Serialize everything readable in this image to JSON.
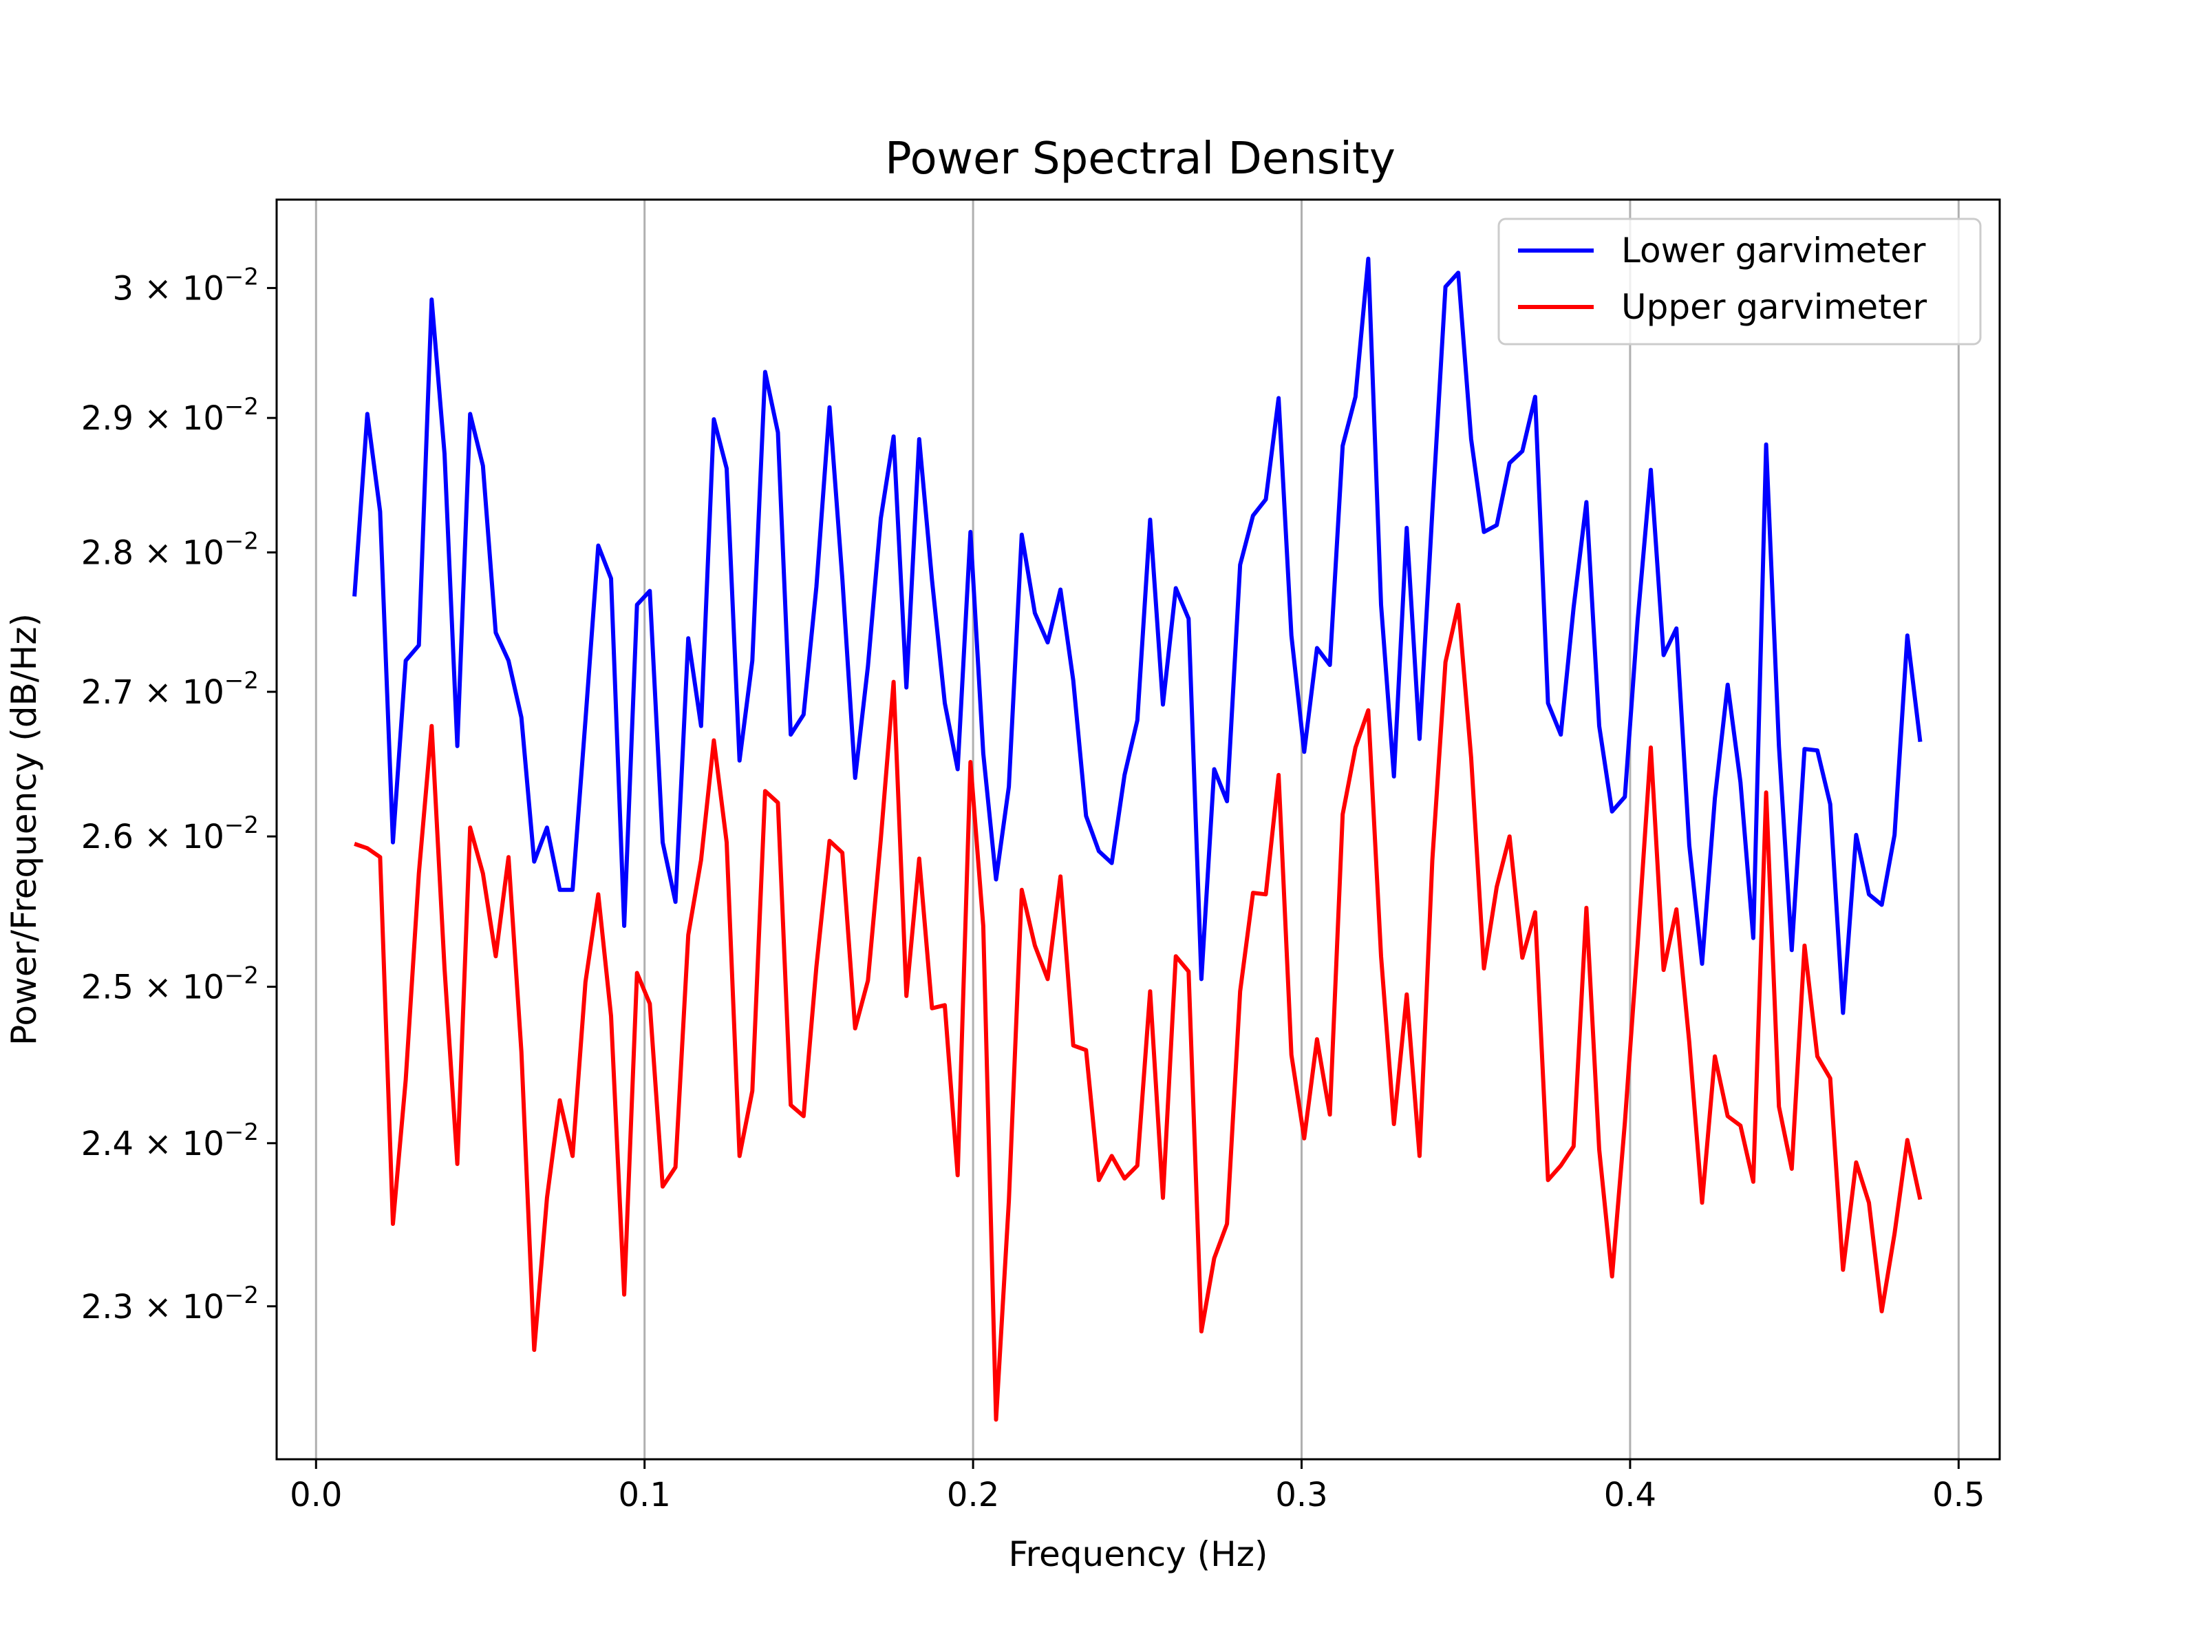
{
  "chart_data": {
    "type": "line",
    "title": "Power Spectral Density",
    "xlabel": "Frequency (Hz)",
    "ylabel": "Power/Frequency (dB/Hz)",
    "xlim": [
      -0.012,
      0.5125
    ],
    "ylim": [
      0.0221,
      0.0307
    ],
    "yscale": "log",
    "grid": "vertical",
    "legend_position": "top-right",
    "x_ticks": [
      {
        "value": 0.0,
        "label": "0.0"
      },
      {
        "value": 0.1,
        "label": "0.1"
      },
      {
        "value": 0.2,
        "label": "0.2"
      },
      {
        "value": 0.3,
        "label": "0.3"
      },
      {
        "value": 0.4,
        "label": "0.4"
      },
      {
        "value": 0.5,
        "label": "0.5"
      }
    ],
    "y_ticks": [
      {
        "value": 0.023,
        "mantissa": "2.3",
        "exponent": "−2"
      },
      {
        "value": 0.024,
        "mantissa": "2.4",
        "exponent": "−2"
      },
      {
        "value": 0.025,
        "mantissa": "2.5",
        "exponent": "−2"
      },
      {
        "value": 0.026,
        "mantissa": "2.6",
        "exponent": "−2"
      },
      {
        "value": 0.027,
        "mantissa": "2.7",
        "exponent": "−2"
      },
      {
        "value": 0.028,
        "mantissa": "2.8",
        "exponent": "−2"
      },
      {
        "value": 0.029,
        "mantissa": "2.9",
        "exponent": "−2"
      },
      {
        "value": 0.03,
        "mantissa": "3",
        "exponent": "−2"
      }
    ],
    "series": [
      {
        "name": "Lower garvimeter",
        "color": "#0000ff",
        "x": [
          0.0117,
          0.0156,
          0.0195,
          0.0234,
          0.0273,
          0.0313,
          0.0352,
          0.0391,
          0.043,
          0.0469,
          0.0508,
          0.0547,
          0.0586,
          0.0625,
          0.0664,
          0.0703,
          0.0742,
          0.0781,
          0.082,
          0.0859,
          0.0898,
          0.0938,
          0.0977,
          0.1016,
          0.1055,
          0.1094,
          0.1133,
          0.1172,
          0.1211,
          0.125,
          0.1289,
          0.1328,
          0.1367,
          0.1406,
          0.1445,
          0.1484,
          0.1523,
          0.1563,
          0.1602,
          0.1641,
          0.168,
          0.1719,
          0.1758,
          0.1797,
          0.1836,
          0.1875,
          0.1914,
          0.1953,
          0.1992,
          0.2031,
          0.207,
          0.2109,
          0.2148,
          0.2188,
          0.2227,
          0.2266,
          0.2305,
          0.2344,
          0.2383,
          0.2422,
          0.2461,
          0.25,
          0.2539,
          0.2578,
          0.2617,
          0.2656,
          0.2695,
          0.2734,
          0.2773,
          0.2813,
          0.2852,
          0.2891,
          0.293,
          0.2969,
          0.3008,
          0.3047,
          0.3086,
          0.3125,
          0.3164,
          0.3203,
          0.3242,
          0.3281,
          0.332,
          0.3359,
          0.3398,
          0.3438,
          0.3477,
          0.3516,
          0.3555,
          0.3594,
          0.3633,
          0.3672,
          0.3711,
          0.375,
          0.3789,
          0.3828,
          0.3867,
          0.3906,
          0.3945,
          0.3984,
          0.4023,
          0.4063,
          0.4102,
          0.4141,
          0.418,
          0.4219,
          0.4258,
          0.4297,
          0.4336,
          0.4375,
          0.4414,
          0.4453,
          0.4492,
          0.4531,
          0.457,
          0.4609,
          0.4648,
          0.4688,
          0.4727,
          0.4766,
          0.4805,
          0.4844,
          0.4883
        ],
        "y": [
          0.02768,
          0.02903,
          0.0283,
          0.02596,
          0.02722,
          0.02733,
          0.02991,
          0.02873,
          0.02662,
          0.02903,
          0.02864,
          0.02742,
          0.02722,
          0.02682,
          0.02583,
          0.02606,
          0.02564,
          0.02564,
          0.0268,
          0.02805,
          0.02781,
          0.0254,
          0.02762,
          0.02772,
          0.02596,
          0.02556,
          0.02738,
          0.02676,
          0.02899,
          0.02862,
          0.02652,
          0.02722,
          0.02935,
          0.02889,
          0.0267,
          0.02684,
          0.02775,
          0.02908,
          0.02781,
          0.0264,
          0.02718,
          0.02825,
          0.02886,
          0.02703,
          0.02884,
          0.0278,
          0.02692,
          0.02646,
          0.02815,
          0.02657,
          0.02571,
          0.02634,
          0.02813,
          0.02756,
          0.02735,
          0.02773,
          0.02708,
          0.02614,
          0.0259,
          0.02582,
          0.02642,
          0.0268,
          0.02824,
          0.02691,
          0.02774,
          0.02752,
          0.02505,
          0.02646,
          0.02624,
          0.02791,
          0.02827,
          0.02839,
          0.02915,
          0.0274,
          0.02658,
          0.02731,
          0.02719,
          0.02879,
          0.02916,
          0.03023,
          0.02762,
          0.02641,
          0.02818,
          0.02667,
          0.0283,
          0.03001,
          0.03012,
          0.02884,
          0.02815,
          0.0282,
          0.02866,
          0.02875,
          0.02916,
          0.02692,
          0.0267,
          0.0276,
          0.02837,
          0.02676,
          0.02617,
          0.02627,
          0.02751,
          0.02861,
          0.02726,
          0.02745,
          0.02594,
          0.02515,
          0.02626,
          0.02705,
          0.02637,
          0.02532,
          0.0288,
          0.02662,
          0.02524,
          0.0266,
          0.02659,
          0.02622,
          0.02483,
          0.02601,
          0.02561,
          0.02554,
          0.02601,
          0.0274,
          0.02665
        ]
      },
      {
        "name": "Upper garvimeter",
        "color": "#ff0000",
        "x": [
          0.0117,
          0.0156,
          0.0195,
          0.0234,
          0.0273,
          0.0313,
          0.0352,
          0.0391,
          0.043,
          0.0469,
          0.0508,
          0.0547,
          0.0586,
          0.0625,
          0.0664,
          0.0703,
          0.0742,
          0.0781,
          0.082,
          0.0859,
          0.0898,
          0.0938,
          0.0977,
          0.1016,
          0.1055,
          0.1094,
          0.1133,
          0.1172,
          0.1211,
          0.125,
          0.1289,
          0.1328,
          0.1367,
          0.1406,
          0.1445,
          0.1484,
          0.1523,
          0.1563,
          0.1602,
          0.1641,
          0.168,
          0.1719,
          0.1758,
          0.1797,
          0.1836,
          0.1875,
          0.1914,
          0.1953,
          0.1992,
          0.2031,
          0.207,
          0.2109,
          0.2148,
          0.2188,
          0.2227,
          0.2266,
          0.2305,
          0.2344,
          0.2383,
          0.2422,
          0.2461,
          0.25,
          0.2539,
          0.2578,
          0.2617,
          0.2656,
          0.2695,
          0.2734,
          0.2773,
          0.2813,
          0.2852,
          0.2891,
          0.293,
          0.2969,
          0.3008,
          0.3047,
          0.3086,
          0.3125,
          0.3164,
          0.3203,
          0.3242,
          0.3281,
          0.332,
          0.3359,
          0.3398,
          0.3438,
          0.3477,
          0.3516,
          0.3555,
          0.3594,
          0.3633,
          0.3672,
          0.3711,
          0.375,
          0.3789,
          0.3828,
          0.3867,
          0.3906,
          0.3945,
          0.3984,
          0.4023,
          0.4063,
          0.4102,
          0.4141,
          0.418,
          0.4219,
          0.4258,
          0.4297,
          0.4336,
          0.4375,
          0.4414,
          0.4453,
          0.4492,
          0.4531,
          0.457,
          0.4609,
          0.4648,
          0.4688,
          0.4727,
          0.4766,
          0.4805,
          0.4844,
          0.4883
        ],
        "y": [
          0.02595,
          0.02592,
          0.02586,
          0.0235,
          0.0244,
          0.02575,
          0.02676,
          0.02512,
          0.02387,
          0.02606,
          0.02575,
          0.0252,
          0.02586,
          0.02458,
          0.02274,
          0.02366,
          0.02427,
          0.02392,
          0.02503,
          0.02561,
          0.02481,
          0.02307,
          0.02509,
          0.02489,
          0.02373,
          0.02385,
          0.02534,
          0.02584,
          0.02666,
          0.02596,
          0.02392,
          0.02433,
          0.02631,
          0.02623,
          0.02424,
          0.02417,
          0.02513,
          0.02597,
          0.02589,
          0.02473,
          0.02504,
          0.02598,
          0.02707,
          0.02494,
          0.02585,
          0.02486,
          0.02488,
          0.0238,
          0.02651,
          0.0254,
          0.02233,
          0.02364,
          0.02564,
          0.02527,
          0.02505,
          0.02573,
          0.02462,
          0.02459,
          0.02377,
          0.02392,
          0.02378,
          0.02386,
          0.02497,
          0.02366,
          0.0252,
          0.0251,
          0.02285,
          0.02329,
          0.0235,
          0.02497,
          0.02562,
          0.02561,
          0.02642,
          0.02456,
          0.02403,
          0.02466,
          0.02418,
          0.02615,
          0.02661,
          0.02687,
          0.0252,
          0.02412,
          0.02495,
          0.02392,
          0.02584,
          0.02721,
          0.02762,
          0.02654,
          0.02512,
          0.02566,
          0.026,
          0.02519,
          0.02549,
          0.02377,
          0.02386,
          0.02398,
          0.02552,
          0.02396,
          0.02318,
          0.02413,
          0.02528,
          0.02661,
          0.02511,
          0.02551,
          0.02464,
          0.02363,
          0.02455,
          0.02417,
          0.02411,
          0.02376,
          0.0263,
          0.02423,
          0.02384,
          0.02527,
          0.02455,
          0.02441,
          0.02322,
          0.02388,
          0.02363,
          0.02297,
          0.02344,
          0.02402,
          0.02365
        ]
      }
    ]
  }
}
